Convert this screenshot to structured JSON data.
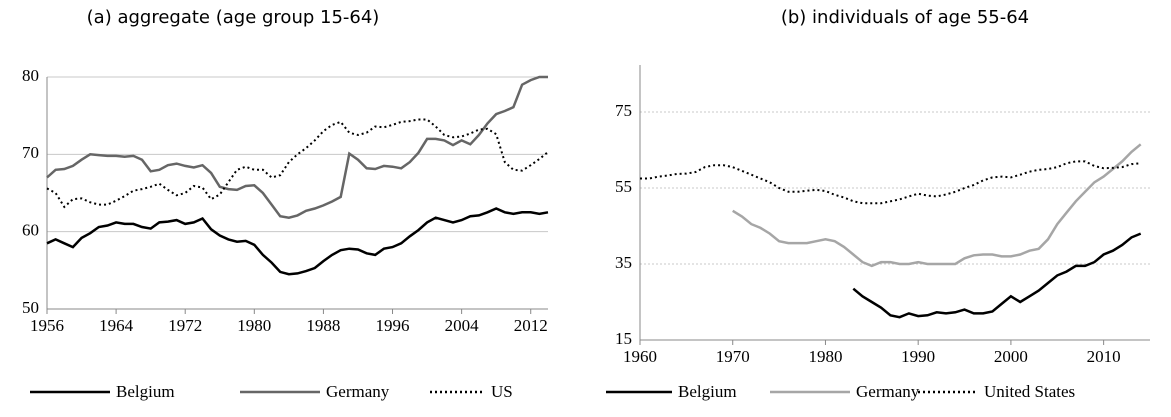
{
  "chart_data": [
    {
      "type": "line",
      "title": "(a) aggregate (age group 15-64)",
      "x": [
        1956,
        1957,
        1958,
        1959,
        1960,
        1961,
        1962,
        1963,
        1964,
        1965,
        1966,
        1967,
        1968,
        1969,
        1970,
        1971,
        1972,
        1973,
        1974,
        1975,
        1976,
        1977,
        1978,
        1979,
        1980,
        1981,
        1982,
        1983,
        1984,
        1985,
        1986,
        1987,
        1988,
        1989,
        1990,
        1991,
        1992,
        1993,
        1994,
        1995,
        1996,
        1997,
        1998,
        1999,
        2000,
        2001,
        2002,
        2003,
        2004,
        2005,
        2006,
        2007,
        2008,
        2009,
        2010,
        2011,
        2012,
        2013,
        2014
      ],
      "xlim": [
        1956,
        2014
      ],
      "xticks": [
        1956,
        1964,
        1972,
        1980,
        1988,
        1996,
        2004,
        2012
      ],
      "ylim": [
        50,
        80
      ],
      "yticks": [
        50,
        60,
        70,
        80
      ],
      "grid": true,
      "series": [
        {
          "name": "Belgium",
          "color": "#000000",
          "dash": "solid",
          "values": [
            58.5,
            59,
            58.5,
            58,
            59.2,
            59.8,
            60.6,
            60.8,
            61.2,
            61,
            61,
            60.6,
            60.4,
            61.2,
            61.3,
            61.5,
            61,
            61.2,
            61.7,
            60.3,
            59.5,
            59,
            58.7,
            58.8,
            58.3,
            57,
            56,
            54.8,
            54.5,
            54.6,
            54.9,
            55.3,
            56.2,
            57,
            57.6,
            57.8,
            57.7,
            57.2,
            57,
            57.8,
            58,
            58.5,
            59.4,
            60.2,
            61.2,
            61.8,
            61.5,
            61.2,
            61.5,
            62,
            62.1,
            62.5,
            63,
            62.5,
            62.3,
            62.5,
            62.5,
            62.3,
            62.5
          ]
        },
        {
          "name": "Germany",
          "color": "#666666",
          "dash": "solid",
          "values": [
            67,
            68,
            68.1,
            68.5,
            69.3,
            70,
            69.9,
            69.8,
            69.8,
            69.7,
            69.8,
            69.3,
            67.8,
            68,
            68.6,
            68.8,
            68.5,
            68.3,
            68.6,
            67.6,
            65.8,
            65.5,
            65.4,
            65.9,
            66,
            65,
            63.5,
            62,
            61.8,
            62.1,
            62.7,
            63,
            63.4,
            63.9,
            64.5,
            70.1,
            69.3,
            68.2,
            68.1,
            68.5,
            68.4,
            68.2,
            69,
            70.2,
            72,
            72,
            71.8,
            71.2,
            71.8,
            71.3,
            72.5,
            74,
            75.2,
            75.6,
            76.1,
            79,
            79.6,
            80,
            80
          ]
        },
        {
          "name": "US",
          "color": "#000000",
          "dash": "dotted",
          "values": [
            65.6,
            65,
            63.2,
            64.2,
            64.3,
            63.8,
            63.5,
            63.5,
            64,
            64.6,
            65.3,
            65.5,
            65.8,
            66.2,
            65.4,
            64.7,
            65,
            65.9,
            65.7,
            64.2,
            64.8,
            66.4,
            68,
            68.4,
            68,
            68,
            67,
            67.3,
            69,
            70,
            70.8,
            71.8,
            73,
            73.8,
            74.2,
            72.8,
            72.5,
            72.8,
            73.6,
            73.5,
            73.8,
            74.2,
            74.3,
            74.5,
            74.5,
            73.6,
            72.5,
            72.2,
            72.3,
            72.7,
            73.2,
            73.3,
            72.6,
            69,
            68,
            67.9,
            68.6,
            69.4,
            70.3
          ]
        }
      ]
    },
    {
      "type": "line",
      "title": "(b) individuals of age 55-64",
      "x": [
        1960,
        1961,
        1962,
        1963,
        1964,
        1965,
        1966,
        1967,
        1968,
        1969,
        1970,
        1971,
        1972,
        1973,
        1974,
        1975,
        1976,
        1977,
        1978,
        1979,
        1980,
        1981,
        1982,
        1983,
        1984,
        1985,
        1986,
        1987,
        1988,
        1989,
        1990,
        1991,
        1992,
        1993,
        1994,
        1995,
        1996,
        1997,
        1998,
        1999,
        2000,
        2001,
        2002,
        2003,
        2004,
        2005,
        2006,
        2007,
        2008,
        2009,
        2010,
        2011,
        2012,
        2013,
        2014
      ],
      "xlim": [
        1960,
        2015
      ],
      "xticks": [
        1960,
        1970,
        1980,
        1990,
        2000,
        2010
      ],
      "ylim": [
        15,
        75
      ],
      "yticks": [
        15,
        35,
        55,
        75
      ],
      "grid": true,
      "series": [
        {
          "name": "Belgium",
          "color": "#000000",
          "dash": "solid",
          "values": [
            null,
            null,
            null,
            null,
            null,
            null,
            null,
            null,
            null,
            null,
            null,
            null,
            null,
            null,
            null,
            null,
            null,
            null,
            null,
            null,
            null,
            null,
            null,
            28.5,
            26.5,
            25,
            23.5,
            21.5,
            21,
            22,
            21.3,
            21.5,
            22.3,
            22,
            22.3,
            23,
            22,
            22,
            22.5,
            24.5,
            26.5,
            25,
            26.5,
            28,
            30,
            32,
            33,
            34.5,
            34.5,
            35.5,
            37.5,
            38.5,
            40,
            42,
            43
          ]
        },
        {
          "name": "Germany",
          "color": "#a6a6a6",
          "dash": "solid",
          "values": [
            null,
            null,
            null,
            null,
            null,
            null,
            null,
            null,
            null,
            null,
            49,
            47.5,
            45.5,
            44.5,
            43,
            41,
            40.5,
            40.5,
            40.5,
            41,
            41.5,
            41,
            39.5,
            37.5,
            35.5,
            34.5,
            35.5,
            35.5,
            35,
            35,
            35.5,
            35,
            35,
            35,
            35,
            36.5,
            37.3,
            37.5,
            37.5,
            37,
            37,
            37.5,
            38.5,
            39,
            41.5,
            45.5,
            48.5,
            51.5,
            54,
            56.5,
            58,
            60,
            62,
            64.5,
            66.5
          ]
        },
        {
          "name": "United States",
          "color": "#000000",
          "dash": "dotted",
          "values": [
            57.5,
            57.5,
            58,
            58.3,
            58.7,
            58.8,
            59.2,
            60.5,
            61,
            61,
            60.5,
            59.5,
            58.5,
            57.5,
            56.5,
            55,
            54,
            54,
            54.3,
            54.5,
            54.2,
            53.2,
            52.5,
            51.5,
            51,
            51,
            51,
            51.5,
            52,
            52.8,
            53.5,
            53,
            52.8,
            53.3,
            54,
            55,
            55.8,
            57,
            57.8,
            58,
            57.8,
            58.5,
            59.3,
            59.8,
            60,
            60.5,
            61.5,
            62,
            62,
            60.8,
            60.2,
            60.3,
            60.5,
            61.3,
            61.5
          ]
        }
      ]
    }
  ]
}
